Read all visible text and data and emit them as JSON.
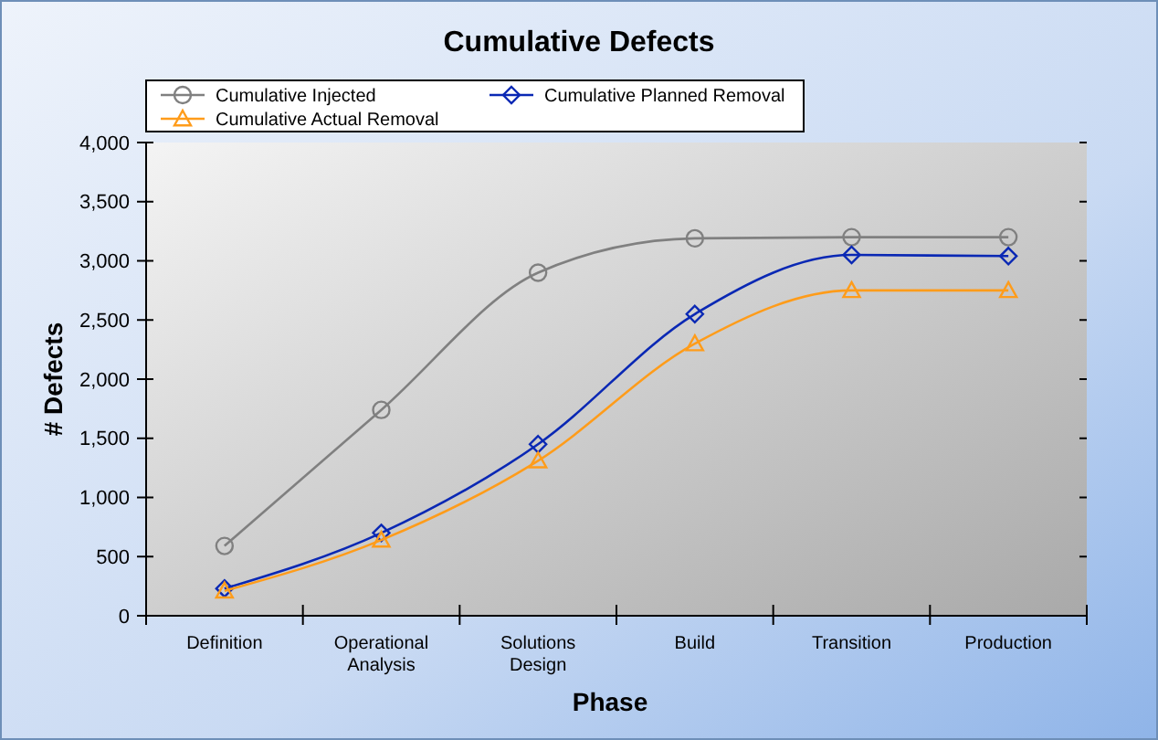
{
  "chart_data": {
    "type": "line",
    "title": "Cumulative Defects",
    "xlabel": "Phase",
    "ylabel": "# Defects",
    "categories": [
      "Definition",
      "Operational Analysis",
      "Solutions Design",
      "Build",
      "Transition",
      "Production"
    ],
    "series": [
      {
        "name": "Cumulative Injected",
        "color": "#808080",
        "marker": "circle",
        "values": [
          590,
          1740,
          2900,
          3190,
          3200,
          3200
        ]
      },
      {
        "name": "Cumulative Planned Removal",
        "color": "#0a28b4",
        "marker": "diamond",
        "values": [
          230,
          700,
          1450,
          2550,
          3050,
          3040
        ]
      },
      {
        "name": "Cumulative Actual Removal",
        "color": "#ff9c1a",
        "marker": "triangle",
        "values": [
          210,
          640,
          1310,
          2300,
          2750,
          2750
        ]
      }
    ],
    "ylim": [
      0,
      4000
    ],
    "yticks": [
      0,
      {
        "value": 500,
        "label": "500"
      },
      {
        "value": 1000,
        "label": "1,000"
      },
      {
        "value": 1500,
        "label": "1,500"
      },
      {
        "value": 2000,
        "label": "2,000"
      },
      {
        "value": 2500,
        "label": "2,500"
      },
      {
        "value": 3000,
        "label": "3,000"
      },
      {
        "value": 3500,
        "label": "3,500"
      },
      {
        "value": 4000,
        "label": "4,000"
      }
    ],
    "grid": false,
    "legend": "top left",
    "line_style": "solid"
  }
}
